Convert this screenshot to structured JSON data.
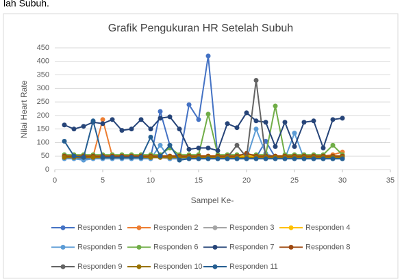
{
  "top_text": "lah Subuh.",
  "chart_data": {
    "type": "line",
    "title": "Grafik Pengukuran HR Setelah Subuh",
    "x_label": "Sampel Ke-",
    "y_label": "Nilai Heart Rate",
    "x": [
      1,
      2,
      3,
      4,
      5,
      6,
      7,
      8,
      9,
      10,
      11,
      12,
      13,
      14,
      15,
      16,
      17,
      18,
      19,
      20,
      21,
      22,
      23,
      24,
      25,
      26,
      27,
      28,
      29,
      30
    ],
    "xlim": [
      0,
      35
    ],
    "xticks": [
      0,
      5,
      10,
      15,
      20,
      25,
      30,
      35
    ],
    "ylim": [
      0,
      450
    ],
    "yticks": [
      0,
      50,
      100,
      150,
      200,
      250,
      300,
      350,
      400,
      450
    ],
    "grid": true,
    "legend": "bottom",
    "series": [
      {
        "name": "Responden 1",
        "color": "#4472c4",
        "values": [
          45,
          45,
          40,
          45,
          45,
          45,
          45,
          45,
          45,
          45,
          215,
          90,
          40,
          240,
          185,
          420,
          45,
          45,
          45,
          45,
          45,
          105,
          45,
          45,
          45,
          45,
          45,
          45,
          45,
          45
        ]
      },
      {
        "name": "Responden 2",
        "color": "#ed7d31",
        "values": [
          50,
          50,
          50,
          50,
          185,
          50,
          50,
          50,
          50,
          50,
          50,
          50,
          50,
          50,
          50,
          50,
          50,
          50,
          50,
          50,
          50,
          50,
          50,
          50,
          50,
          50,
          50,
          50,
          55,
          65
        ]
      },
      {
        "name": "Responden 3",
        "color": "#a5a5a5",
        "values": [
          45,
          45,
          45,
          45,
          45,
          45,
          45,
          45,
          45,
          45,
          45,
          40,
          40,
          45,
          45,
          45,
          45,
          45,
          45,
          45,
          45,
          45,
          45,
          45,
          45,
          45,
          45,
          45,
          45,
          45
        ]
      },
      {
        "name": "Responden 4",
        "color": "#ffc000",
        "values": [
          50,
          50,
          50,
          50,
          50,
          50,
          50,
          50,
          50,
          50,
          50,
          50,
          50,
          50,
          50,
          50,
          50,
          50,
          50,
          50,
          50,
          50,
          50,
          50,
          50,
          50,
          50,
          50,
          50,
          50
        ]
      },
      {
        "name": "Responden 5",
        "color": "#5b9bd5",
        "values": [
          40,
          40,
          35,
          40,
          40,
          40,
          40,
          40,
          40,
          40,
          90,
          40,
          40,
          40,
          40,
          40,
          40,
          40,
          40,
          40,
          150,
          60,
          45,
          40,
          135,
          40,
          40,
          40,
          40,
          40
        ]
      },
      {
        "name": "Responden 6",
        "color": "#70ad47",
        "values": [
          55,
          55,
          55,
          55,
          55,
          55,
          55,
          55,
          55,
          55,
          55,
          80,
          55,
          55,
          55,
          205,
          55,
          55,
          55,
          55,
          55,
          55,
          235,
          55,
          55,
          55,
          55,
          55,
          90,
          55
        ]
      },
      {
        "name": "Responden 7",
        "color": "#264478",
        "values": [
          165,
          150,
          160,
          175,
          170,
          185,
          145,
          150,
          185,
          150,
          190,
          195,
          150,
          75,
          80,
          80,
          70,
          170,
          155,
          210,
          180,
          175,
          85,
          175,
          85,
          175,
          180,
          80,
          185,
          190
        ]
      },
      {
        "name": "Responden 8",
        "color": "#9e480e",
        "values": [
          50,
          50,
          50,
          50,
          50,
          50,
          50,
          50,
          50,
          50,
          50,
          50,
          50,
          50,
          50,
          50,
          50,
          50,
          50,
          60,
          50,
          50,
          50,
          50,
          50,
          50,
          50,
          50,
          50,
          50
        ]
      },
      {
        "name": "Responden 9",
        "color": "#636363",
        "values": [
          45,
          45,
          45,
          45,
          45,
          45,
          45,
          45,
          45,
          45,
          45,
          45,
          45,
          45,
          45,
          45,
          45,
          45,
          90,
          45,
          330,
          45,
          45,
          45,
          45,
          45,
          45,
          45,
          45,
          45
        ]
      },
      {
        "name": "Responden 10",
        "color": "#997300",
        "values": [
          45,
          45,
          45,
          45,
          45,
          45,
          45,
          45,
          45,
          45,
          45,
          45,
          45,
          45,
          45,
          45,
          45,
          45,
          45,
          45,
          45,
          45,
          45,
          45,
          45,
          45,
          45,
          45,
          45,
          45
        ]
      },
      {
        "name": "Responden 11",
        "color": "#255e91",
        "values": [
          105,
          50,
          45,
          180,
          45,
          45,
          45,
          45,
          45,
          120,
          50,
          90,
          35,
          40,
          40,
          40,
          40,
          40,
          40,
          40,
          40,
          40,
          40,
          40,
          40,
          40,
          40,
          40,
          40,
          40
        ]
      }
    ]
  }
}
